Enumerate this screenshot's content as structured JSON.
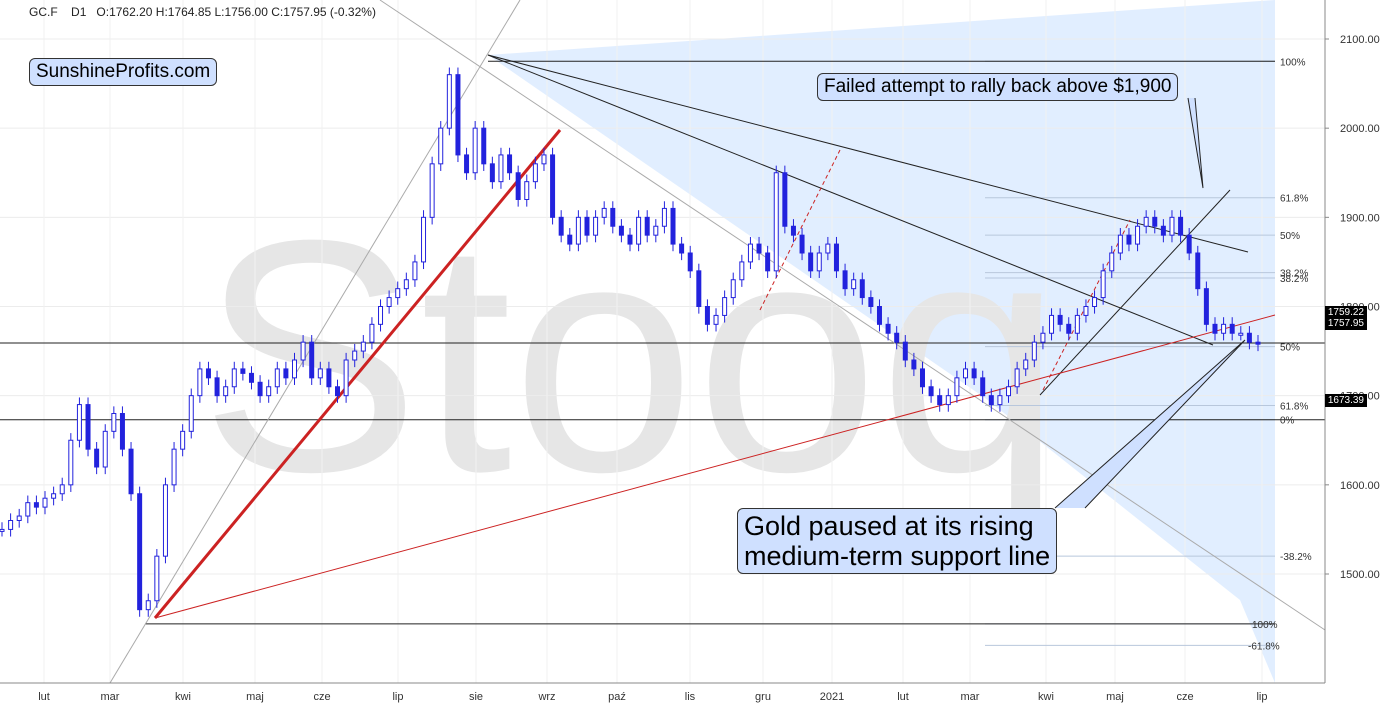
{
  "header": {
    "symbol": "GC.F",
    "interval": "D1",
    "ohlc": "O:1762.20  H:1764.85  L:1756.00  C:1757.95  (-0.32%)"
  },
  "brand": "SunshineProfits.com",
  "watermark": "Stooq",
  "annotations": {
    "top": "Failed attempt to rally back above $1,900",
    "bottom_line1": "Gold paused at its rising",
    "bottom_line2": "medium-term support line"
  },
  "price_tags": {
    "close": "1757.95",
    "level": "1759.22",
    "low": "1673.39"
  },
  "colors": {
    "candle": "#2222dd",
    "support_line": "#cc2222",
    "fib_zone": "#dcebff",
    "callout_bg": "#cfe0ff"
  },
  "chart_data": {
    "type": "line",
    "title": "",
    "xlabel": "",
    "ylabel": "",
    "ylim": [
      1425,
      2140
    ],
    "x_ticks": [
      "lut",
      "mar",
      "kwi",
      "maj",
      "cze",
      "lip",
      "sie",
      "wrz",
      "paź",
      "lis",
      "gru",
      "2021",
      "lut",
      "mar",
      "kwi",
      "maj",
      "cze",
      "lip"
    ],
    "y_ticks": [
      2100,
      2000,
      1900,
      1800,
      1700,
      1600,
      1500
    ],
    "y_tick_labels": [
      "2100.00",
      "2000.00",
      "1900.00",
      "1800.00",
      "1700.00",
      "1600.00",
      "1500.00"
    ],
    "series": [
      {
        "values": [
          1550,
          1560,
          1565,
          1580,
          1575,
          1585,
          1590,
          1600,
          1650,
          1690,
          1640,
          1620,
          1660,
          1680,
          1640,
          1590,
          1460,
          1470,
          1520,
          1600,
          1640,
          1660,
          1700,
          1730,
          1720,
          1700,
          1710,
          1730,
          1725,
          1715,
          1700,
          1710,
          1730,
          1720,
          1740,
          1760,
          1720,
          1730,
          1710,
          1700,
          1740,
          1750,
          1760,
          1780,
          1800,
          1810,
          1820,
          1830,
          1850,
          1900,
          1960,
          2000,
          2060,
          1970,
          1950,
          2000,
          1960,
          1940,
          1970,
          1950,
          1920,
          1940,
          1960,
          1970,
          1900,
          1880,
          1870,
          1900,
          1880,
          1900,
          1910,
          1890,
          1880,
          1870,
          1900,
          1880,
          1890,
          1910,
          1870,
          1860,
          1840,
          1800,
          1780,
          1790,
          1810,
          1830,
          1850,
          1870,
          1860,
          1840,
          1950,
          1890,
          1880,
          1860,
          1840,
          1860,
          1870,
          1840,
          1820,
          1830,
          1810,
          1800,
          1780,
          1770,
          1760,
          1740,
          1730,
          1710,
          1700,
          1690,
          1700,
          1720,
          1730,
          1720,
          1700,
          1690,
          1700,
          1710,
          1730,
          1740,
          1760,
          1770,
          1790,
          1780,
          1770,
          1790,
          1800,
          1810,
          1840,
          1860,
          1880,
          1870,
          1890,
          1900,
          1890,
          1880,
          1900,
          1880,
          1860,
          1820,
          1780,
          1770,
          1780,
          1770,
          1770,
          1760,
          1758
        ]
      }
    ],
    "fib_levels_right_scale": [
      "100%",
      "61.8%",
      "50%",
      "38.2%",
      "38.2%",
      "50%",
      "61.8%",
      "0%",
      "-38.2%",
      "100%",
      "-61.8%"
    ],
    "fib_level_prices": [
      2075,
      1922,
      1880,
      1838,
      1832,
      1755,
      1689,
      1673,
      1520,
      1444,
      1420
    ],
    "grid": true,
    "legend": "none"
  }
}
